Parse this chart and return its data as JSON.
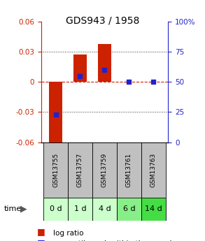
{
  "title": "GDS943 / 1958",
  "samples": [
    "GSM13755",
    "GSM13757",
    "GSM13759",
    "GSM13761",
    "GSM13763"
  ],
  "time_labels": [
    "0 d",
    "1 d",
    "4 d",
    "6 d",
    "14 d"
  ],
  "log_ratios": [
    -0.065,
    0.027,
    0.038,
    0.0,
    0.0
  ],
  "percentile_ranks": [
    23,
    55,
    60,
    50,
    50
  ],
  "ylim_left": [
    -0.06,
    0.06
  ],
  "ylim_right": [
    0,
    100
  ],
  "yticks_left": [
    -0.06,
    -0.03,
    0,
    0.03,
    0.06
  ],
  "yticks_right": [
    0,
    25,
    50,
    75,
    100
  ],
  "bar_color": "#cc2200",
  "dot_color": "#2222cc",
  "zero_line_color": "#cc2200",
  "grid_color": "#333333",
  "left_label_color": "#cc2200",
  "right_label_color": "#2222cc",
  "sample_bg_color": "#c0c0c0",
  "time_bg_colors": [
    "#ccffcc",
    "#ccffcc",
    "#ccffcc",
    "#88ee88",
    "#44dd44"
  ],
  "bar_width": 0.55,
  "figsize": [
    2.93,
    3.45
  ],
  "dpi": 100
}
